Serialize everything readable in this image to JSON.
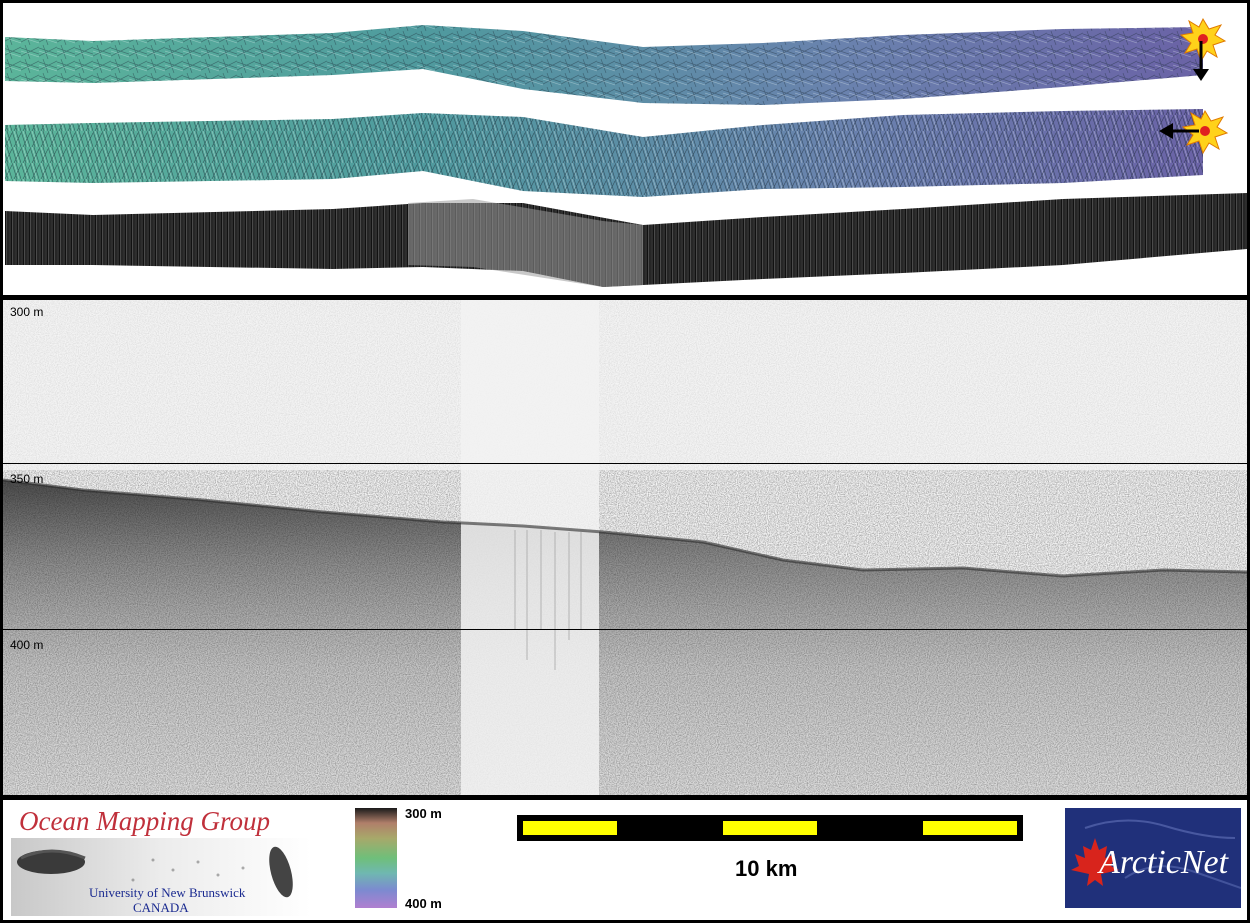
{
  "profile": {
    "depth_labels": [
      "300 m",
      "350 m",
      "400 m"
    ]
  },
  "legend": {
    "logo_left": {
      "title": "Ocean Mapping Group",
      "line1": "University of New Brunswick",
      "line2": "CANADA"
    },
    "colorbar": {
      "top_label": "300 m",
      "bottom_label": "400 m"
    },
    "scale_bar": {
      "label": "10 km"
    },
    "logo_right": {
      "text": "ArcticNet"
    }
  },
  "colors": {
    "swath_start": "#5bb59a",
    "swath_end": "#6e6aa8",
    "scale_yellow": "#ffff00",
    "omg_red": "#c0303b",
    "arctic_blue": "#20307a",
    "maple_red": "#d8241c"
  }
}
